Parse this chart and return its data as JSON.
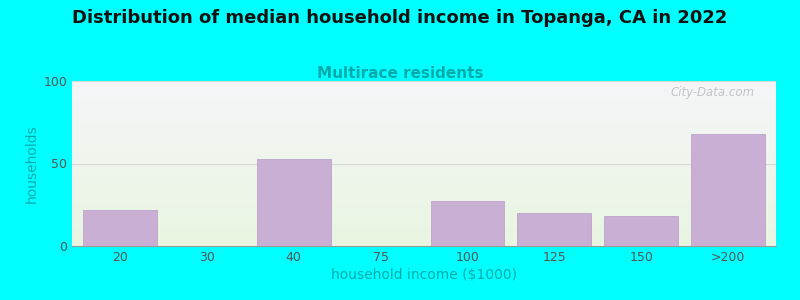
{
  "title": "Distribution of median household income in Topanga, CA in 2022",
  "subtitle": "Multirace residents",
  "xlabel": "household income ($1000)",
  "ylabel": "households",
  "background_color": "#00FFFF",
  "bar_color": "#c9afd4",
  "bar_edge_color": "#b898c8",
  "categories": [
    "20",
    "30",
    "40",
    "75",
    "100",
    "125",
    "150",
    ">200"
  ],
  "values": [
    22,
    0,
    53,
    0,
    27,
    20,
    18,
    68
  ],
  "ylim": [
    0,
    100
  ],
  "yticks": [
    0,
    50,
    100
  ],
  "title_fontsize": 13,
  "subtitle_fontsize": 11,
  "subtitle_color": "#00AAAA",
  "ylabel_color": "#00AAAA",
  "xlabel_color": "#00AAAA",
  "tick_color": "#555555",
  "watermark": "City-Data.com",
  "gradient_top": "#f5f5f8",
  "gradient_bottom": "#e8f5e0",
  "grid_color": "#d8d8d8"
}
